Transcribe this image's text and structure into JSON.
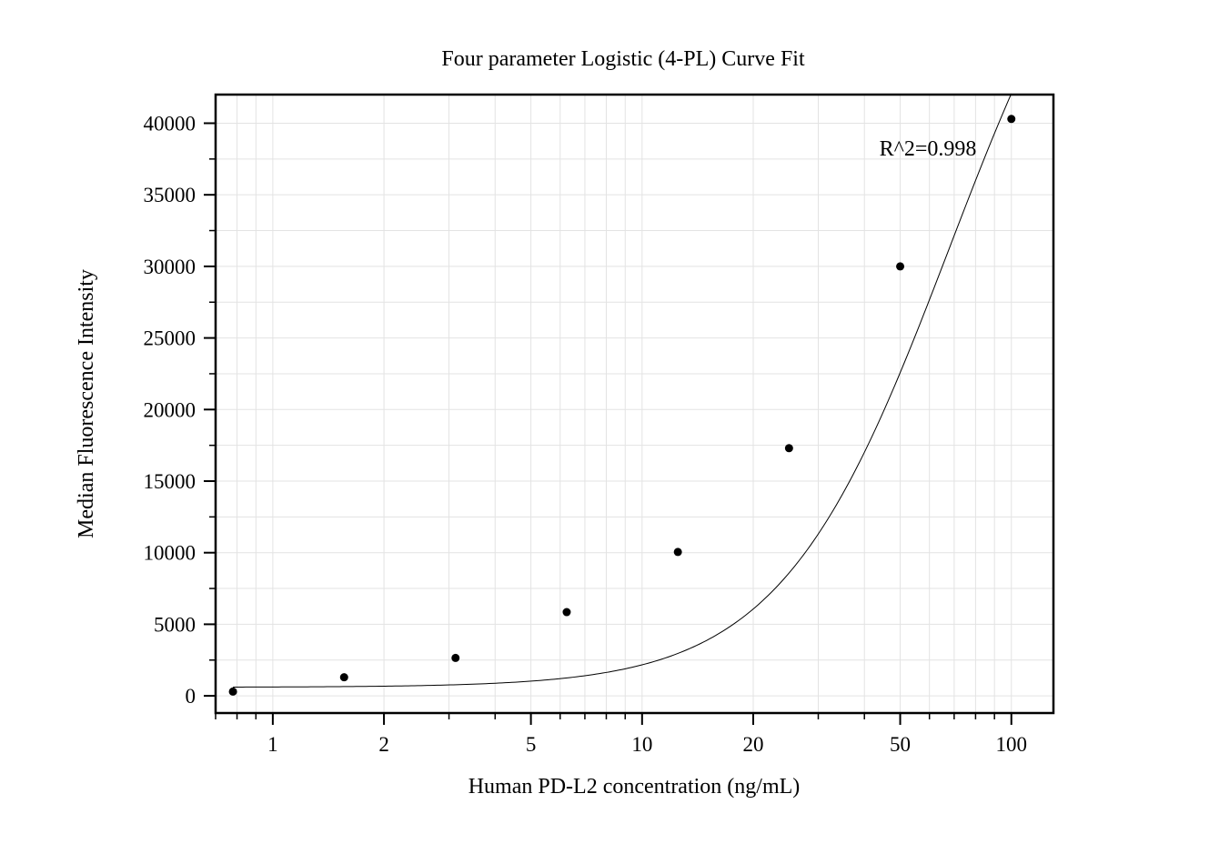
{
  "chart_data": {
    "type": "scatter",
    "title": "Four parameter Logistic (4-PL) Curve Fit",
    "xlabel": "Human PD-L2 concentration (ng/mL)",
    "ylabel": "Median Fluorescence Intensity",
    "x_scale": "log",
    "xlim": [
      0.7,
      130
    ],
    "ylim": [
      -1200,
      42000
    ],
    "x_ticks": [
      1,
      2,
      5,
      10,
      20,
      50,
      100
    ],
    "x_tick_labels": [
      "1",
      "2",
      "5",
      "10",
      "20",
      "50",
      "100"
    ],
    "y_ticks": [
      0,
      5000,
      10000,
      15000,
      20000,
      25000,
      30000,
      35000,
      40000
    ],
    "y_tick_labels": [
      "0",
      "5000",
      "10000",
      "15000",
      "20000",
      "25000",
      "30000",
      "35000",
      "40000"
    ],
    "grid": true,
    "series": [
      {
        "kind": "points",
        "x": [
          0.78,
          1.56,
          3.125,
          6.25,
          12.5,
          25,
          50,
          100
        ],
        "y": [
          300,
          1300,
          2650,
          5850,
          10050,
          17300,
          30000,
          40300
        ]
      },
      {
        "kind": "fit_curve",
        "model": "4PL",
        "params": {
          "A": 600,
          "B": 1.9,
          "C": 68,
          "D": 62000
        },
        "x_range": [
          0.78,
          100
        ]
      }
    ],
    "annotations": [
      {
        "text": "R^2=0.998"
      }
    ]
  }
}
